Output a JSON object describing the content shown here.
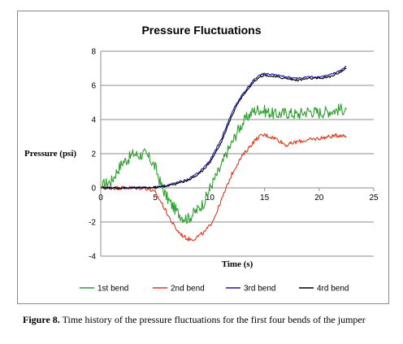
{
  "chart_data": {
    "type": "line",
    "title": "Pressure Fluctuations",
    "xlabel": "Time (s)",
    "ylabel": "Pressure (psi)",
    "xlim": [
      0,
      25
    ],
    "ylim": [
      -4,
      8
    ],
    "xticks": [
      "0",
      "5",
      "10",
      "15",
      "20",
      "25"
    ],
    "yticks": [
      "-4",
      "-2",
      "0",
      "2",
      "4",
      "6",
      "8"
    ],
    "grid": "horizontal",
    "legend_position": "bottom",
    "series": [
      {
        "name": "1st bend",
        "color": "#2ca02c",
        "noise": 0.35,
        "points": [
          [
            0,
            0
          ],
          [
            0.3,
            0.2
          ],
          [
            1,
            0.4
          ],
          [
            1.5,
            1.0
          ],
          [
            2,
            1.5
          ],
          [
            2.5,
            1.7
          ],
          [
            3,
            2.0
          ],
          [
            3.5,
            1.9
          ],
          [
            4,
            2.0
          ],
          [
            4.5,
            1.7
          ],
          [
            5,
            1.2
          ],
          [
            5.5,
            0.2
          ],
          [
            6,
            -0.5
          ],
          [
            6.5,
            -1.0
          ],
          [
            7,
            -1.4
          ],
          [
            7.5,
            -1.7
          ],
          [
            8,
            -1.8
          ],
          [
            8.5,
            -1.5
          ],
          [
            9,
            -1.2
          ],
          [
            9.5,
            -0.8
          ],
          [
            10,
            0.0
          ],
          [
            10.5,
            0.6
          ],
          [
            11,
            1.2
          ],
          [
            11.5,
            2.0
          ],
          [
            12,
            2.6
          ],
          [
            12.5,
            3.3
          ],
          [
            13,
            3.8
          ],
          [
            13.5,
            4.2
          ],
          [
            14,
            4.5
          ],
          [
            14.5,
            4.6
          ],
          [
            15,
            4.5
          ],
          [
            15.5,
            4.4
          ],
          [
            16,
            4.3
          ],
          [
            17,
            4.4
          ],
          [
            18,
            4.3
          ],
          [
            19,
            4.5
          ],
          [
            20,
            4.4
          ],
          [
            21,
            4.5
          ],
          [
            22,
            4.6
          ],
          [
            22.5,
            4.6
          ]
        ]
      },
      {
        "name": "2nd bend",
        "color": "#e03a1e",
        "noise": 0.12,
        "points": [
          [
            0,
            0
          ],
          [
            1,
            0
          ],
          [
            2,
            0
          ],
          [
            3,
            0
          ],
          [
            4,
            0
          ],
          [
            4.5,
            -0.1
          ],
          [
            5,
            -0.3
          ],
          [
            5.5,
            -0.8
          ],
          [
            6,
            -1.4
          ],
          [
            6.5,
            -2.0
          ],
          [
            7,
            -2.5
          ],
          [
            7.5,
            -2.8
          ],
          [
            8,
            -3.0
          ],
          [
            8.5,
            -3.0
          ],
          [
            9,
            -2.8
          ],
          [
            9.5,
            -2.6
          ],
          [
            10,
            -2.2
          ],
          [
            10.5,
            -1.6
          ],
          [
            11,
            -0.8
          ],
          [
            11.5,
            0.0
          ],
          [
            12,
            0.8
          ],
          [
            12.5,
            1.4
          ],
          [
            13,
            1.9
          ],
          [
            13.5,
            2.3
          ],
          [
            14,
            2.7
          ],
          [
            14.5,
            3.0
          ],
          [
            15,
            3.1
          ],
          [
            15.5,
            3.0
          ],
          [
            16,
            2.9
          ],
          [
            16.5,
            2.7
          ],
          [
            17,
            2.5
          ],
          [
            17.5,
            2.6
          ],
          [
            18,
            2.7
          ],
          [
            19,
            2.8
          ],
          [
            20,
            2.9
          ],
          [
            21,
            3.0
          ],
          [
            22,
            3.1
          ],
          [
            22.5,
            3.0
          ]
        ]
      },
      {
        "name": "3rd bend",
        "color": "#1a1aa6",
        "noise": 0.06,
        "points": [
          [
            0,
            0
          ],
          [
            1,
            0
          ],
          [
            2,
            0
          ],
          [
            3,
            0
          ],
          [
            4,
            0
          ],
          [
            5,
            0.05
          ],
          [
            6,
            0.15
          ],
          [
            7,
            0.3
          ],
          [
            8,
            0.5
          ],
          [
            9,
            0.9
          ],
          [
            10,
            1.6
          ],
          [
            11,
            2.8
          ],
          [
            11.5,
            3.6
          ],
          [
            12,
            4.4
          ],
          [
            12.5,
            5.0
          ],
          [
            13,
            5.5
          ],
          [
            13.5,
            5.9
          ],
          [
            14,
            6.3
          ],
          [
            14.5,
            6.6
          ],
          [
            15,
            6.7
          ],
          [
            16,
            6.6
          ],
          [
            17,
            6.5
          ],
          [
            18,
            6.4
          ],
          [
            19,
            6.5
          ],
          [
            20,
            6.5
          ],
          [
            21,
            6.6
          ],
          [
            22,
            6.9
          ],
          [
            22.5,
            7.1
          ]
        ]
      },
      {
        "name": "4rd bend",
        "color": "#000000",
        "noise": 0.06,
        "points": [
          [
            0,
            0
          ],
          [
            1,
            0
          ],
          [
            2,
            0
          ],
          [
            3,
            0
          ],
          [
            4,
            0
          ],
          [
            5,
            0.02
          ],
          [
            6,
            0.1
          ],
          [
            7,
            0.25
          ],
          [
            8,
            0.45
          ],
          [
            9,
            0.8
          ],
          [
            10,
            1.5
          ],
          [
            11,
            2.6
          ],
          [
            11.5,
            3.4
          ],
          [
            12,
            4.2
          ],
          [
            12.5,
            4.9
          ],
          [
            13,
            5.4
          ],
          [
            13.5,
            5.8
          ],
          [
            14,
            6.2
          ],
          [
            14.5,
            6.5
          ],
          [
            15,
            6.6
          ],
          [
            16,
            6.5
          ],
          [
            17,
            6.4
          ],
          [
            18,
            6.3
          ],
          [
            19,
            6.4
          ],
          [
            20,
            6.4
          ],
          [
            21,
            6.5
          ],
          [
            22,
            6.8
          ],
          [
            22.5,
            7.0
          ]
        ]
      }
    ]
  },
  "caption": {
    "label": "Figure 8.",
    "text": "Time history of the pressure fluctuations for the first four bends of the jumper"
  }
}
